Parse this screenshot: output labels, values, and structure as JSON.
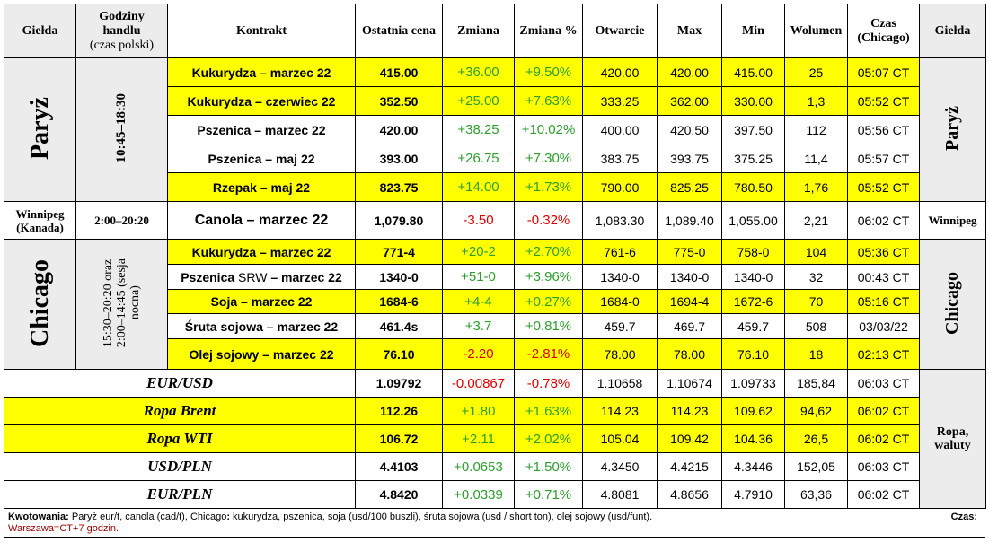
{
  "headers": {
    "gielda": "Giełda",
    "godziny_1": "Godziny",
    "godziny_2": "handlu",
    "godziny_3": "(czas polski)",
    "kontrakt": "Kontrakt",
    "ostatnia": "Ostatnia cena",
    "zmiana": "Zmiana",
    "zmiana_pct": "Zmiana %",
    "otwarcie": "Otwarcie",
    "max": "Max",
    "min": "Min",
    "wolumen": "Wolumen",
    "czas_1": "Czas",
    "czas_2": "(Chicago)",
    "gielda_right": "Giełda"
  },
  "groups": {
    "paryz": {
      "name": "Paryż",
      "hours": "10:45–18:30"
    },
    "winnipeg": {
      "name": "Winnipeg",
      "sub": "(Kanada)",
      "hours": "2:00–20:20"
    },
    "chicago": {
      "name": "Chicago",
      "hours_1": "15:30–20:20 oraz",
      "hours_2": "2:00–14:45 (sesja",
      "hours_3": "nocna)"
    },
    "ropa": {
      "name_1": "Ropa,",
      "name_2": "waluty"
    }
  },
  "rows": [
    {
      "contract": "Kukurydza – marzec 22",
      "last": "415.00",
      "change": "+36.00",
      "change_pct": "+9.50%",
      "open": "420.00",
      "max": "420.00",
      "min": "415.00",
      "volume": "25",
      "time": "05:07 CT"
    },
    {
      "contract": "Kukurydza – czerwiec 22",
      "last": "352.50",
      "change": "+25.00",
      "change_pct": "+7.63%",
      "open": "333.25",
      "max": "362.00",
      "min": "330.00",
      "volume": "1,3",
      "time": "05:52 CT"
    },
    {
      "contract": "Pszenica – marzec 22",
      "last": "420.00",
      "change": "+38.25",
      "change_pct": "+10.02%",
      "open": "400.00",
      "max": "420.50",
      "min": "397.50",
      "volume": "112",
      "time": "05:56 CT"
    },
    {
      "contract": "Pszenica – maj 22",
      "last": "393.00",
      "change": "+26.75",
      "change_pct": "+7.30%",
      "open": "383.75",
      "max": "393.75",
      "min": "375.25",
      "volume": "11,4",
      "time": "05:57 CT"
    },
    {
      "contract": "Rzepak – maj 22",
      "last": "823.75",
      "change": "+14.00",
      "change_pct": "+1.73%",
      "open": "790.00",
      "max": "825.25",
      "min": "780.50",
      "volume": "1,76",
      "time": "05:52 CT"
    },
    {
      "contract": "Canola – marzec 22",
      "last": "1,079.80",
      "change": "-3.50",
      "change_pct": "-0.32%",
      "open": "1,083.30",
      "max": "1,089.40",
      "min": "1,055.00",
      "volume": "2,21",
      "time": "06:02 CT"
    },
    {
      "contract": "Kukurydza – marzec 22",
      "last": "771-4",
      "change": "+20-2",
      "change_pct": "+2.70%",
      "open": "761-6",
      "max": "775-0",
      "min": "758-0",
      "volume": "104",
      "time": "05:36 CT"
    },
    {
      "contract_a": "Pszenica",
      "contract_b": " SRW",
      "contract_c": " – marzec 22",
      "last": "1340-0",
      "change": "+51-0",
      "change_pct": "+3.96%",
      "open": "1340-0",
      "max": "1340-0",
      "min": "1340-0",
      "volume": "32",
      "time": "00:43 CT"
    },
    {
      "contract": "Soja – marzec 22",
      "last": "1684-6",
      "change": "+4-4",
      "change_pct": "+0.27%",
      "open": "1684-0",
      "max": "1694-4",
      "min": "1672-6",
      "volume": "70",
      "time": "05:16 CT"
    },
    {
      "contract": "Śruta sojowa – marzec 22",
      "last": "461.4s",
      "change": "+3.7",
      "change_pct": "+0.81%",
      "open": "459.7",
      "max": "469.7",
      "min": "459.7",
      "volume": "508",
      "time": "03/03/22"
    },
    {
      "contract": "Olej sojowy – marzec 22",
      "last": "76.10",
      "change": "-2.20",
      "change_pct": "-2.81%",
      "open": "78.00",
      "max": "78.00",
      "min": "76.10",
      "volume": "18",
      "time": "02:13 CT"
    },
    {
      "contract": "EUR/USD",
      "last": "1.09792",
      "change": "-0.00867",
      "change_pct": "-0.78%",
      "open": "1.10658",
      "max": "1.10674",
      "min": "1.09733",
      "volume": "185,84",
      "time": "06:03 CT"
    },
    {
      "contract": "Ropa Brent",
      "last": "112.26",
      "change": "+1.80",
      "change_pct": "+1.63%",
      "open": "114.23",
      "max": "114.23",
      "min": "109.62",
      "volume": "94,62",
      "time": "06:02 CT"
    },
    {
      "contract": "Ropa WTI",
      "last": "106.72",
      "change": "+2.11",
      "change_pct": "+2.02%",
      "open": "105.04",
      "max": "109.42",
      "min": "104.36",
      "volume": "26,5",
      "time": "06:02 CT"
    },
    {
      "contract": "USD/PLN",
      "last": "4.4103",
      "change": "+0.0653",
      "change_pct": "+1.50%",
      "open": "4.3450",
      "max": "4.4215",
      "min": "4.3446",
      "volume": "152,05",
      "time": "06:03 CT"
    },
    {
      "contract": "EUR/PLN",
      "last": "4.8420",
      "change": "+0.0339",
      "change_pct": "+0.71%",
      "open": "4.8081",
      "max": "4.8656",
      "min": "4.7910",
      "volume": "63,36",
      "time": "06:02 CT"
    }
  ],
  "footer": {
    "label": "Kwotowania:",
    "text_a": " Paryż eur/t, canola (cad/t), Chicago",
    "text_b": ":",
    "text_c": " kukurydza, pszenica, soja (usd/100 buszli), śruta sojowa (usd / short ton), olej sojowy (usd/funt).",
    "czas": "Czas",
    "czas_colon": ":",
    "note": "Warszawa=CT+7 godzin."
  },
  "colors": {
    "highlight": "#ffff00",
    "group_bg": "#ececec",
    "positive": "#2e9e2e",
    "negative": "#e00000",
    "note": "#a00000"
  }
}
